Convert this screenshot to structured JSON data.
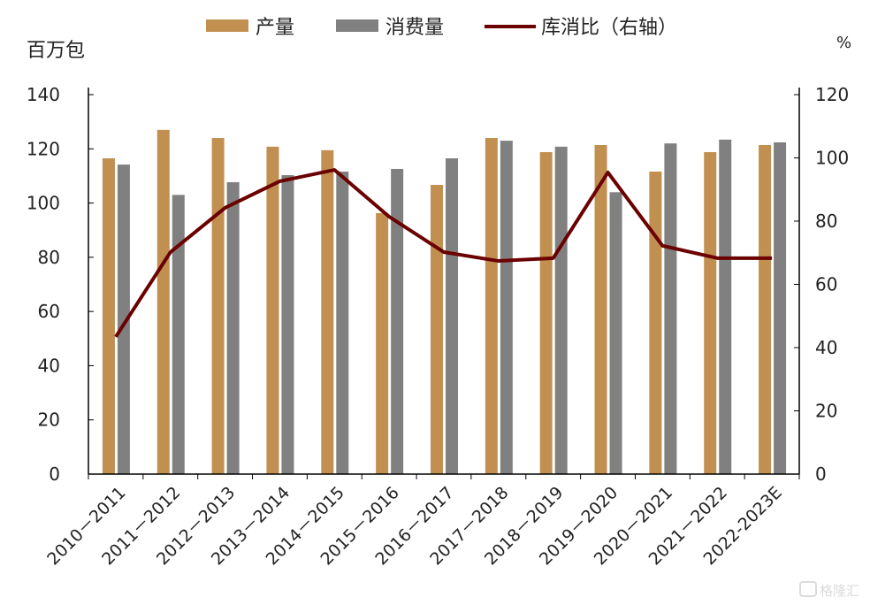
{
  "chart_data": {
    "type": "bar",
    "categories": [
      "2010－2011",
      "2011－2012",
      "2012－2013",
      "2013－2014",
      "2014－2015",
      "2015－2016",
      "2016－2017",
      "2017－2018",
      "2018－2019",
      "2019－2020",
      "2020－2021",
      "2021－2022",
      "2022-2023E"
    ],
    "series": [
      {
        "name": "产量",
        "type": "bar",
        "axis": "left",
        "color": "#C18F4F",
        "values": [
          116.5,
          127,
          124,
          120.8,
          119.5,
          96.3,
          106.7,
          124,
          118.8,
          121.4,
          111.6,
          118.8,
          121.4
        ]
      },
      {
        "name": "消费量",
        "type": "bar",
        "axis": "left",
        "color": "#808080",
        "values": [
          114.2,
          103,
          107.7,
          110.3,
          111.6,
          112.6,
          116.5,
          123,
          120.8,
          104,
          122,
          123.4,
          122.4
        ]
      },
      {
        "name": "库消比（右轴）",
        "type": "line",
        "axis": "right",
        "color": "#6B0000",
        "values": [
          43.4,
          70.2,
          84.2,
          92.6,
          96.2,
          81.4,
          70.2,
          67.4,
          68.3,
          95.4,
          72.2,
          68.3,
          68.3
        ]
      }
    ],
    "ylabel": "百万包",
    "ylabel_right": "%",
    "ylim": [
      0,
      140
    ],
    "ylim_right": [
      0,
      120
    ],
    "yticks": [
      0,
      20,
      40,
      60,
      80,
      100,
      120,
      140
    ],
    "yticks_right": [
      0,
      20,
      40,
      60,
      80,
      100,
      120
    ],
    "legend_position": "top-center",
    "grid": false
  },
  "watermark": "格隆汇"
}
